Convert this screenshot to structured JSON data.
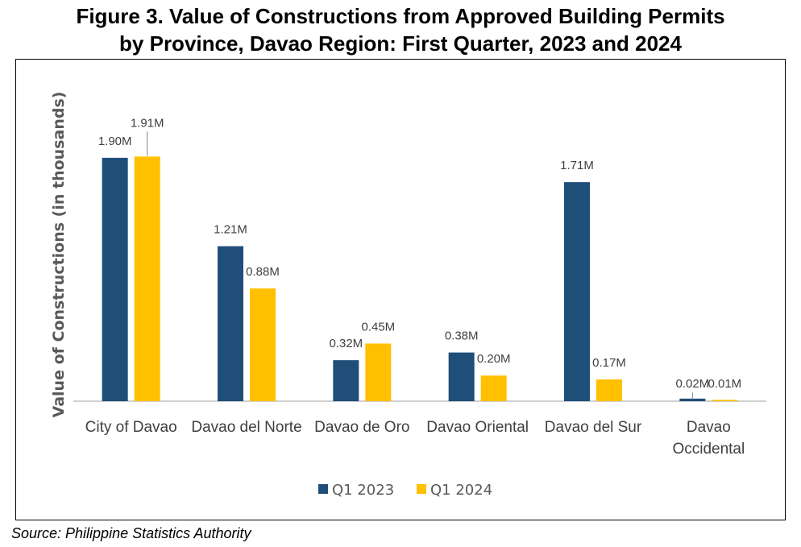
{
  "title_line1": "Figure 3. Value of Constructions from Approved Building Permits",
  "title_line2": "by Province, Davao Region: First Quarter, 2023 and 2024",
  "source": "Source: Philippine Statistics Authority",
  "colors": {
    "q1_2023": "#1F4E79",
    "q1_2024": "#FFC000",
    "axis": "#BFBFBF",
    "text": "#404040"
  },
  "chart_data": {
    "type": "bar",
    "title": "Figure 3. Value of Constructions from Approved Building Permits by Province, Davao Region: First Quarter, 2023 and 2024",
    "xlabel": "",
    "ylabel": "Value of Constructions (in thousands)",
    "ylim": [
      0,
      2.2
    ],
    "legend": "bottom",
    "grid": false,
    "categories": [
      [
        "City of Davao"
      ],
      [
        "Davao del Norte"
      ],
      [
        "Davao de Oro"
      ],
      [
        "Davao Oriental"
      ],
      [
        "Davao del Sur"
      ],
      [
        "Davao",
        "Occidental"
      ]
    ],
    "series": [
      {
        "name": "Q1 2023",
        "values": [
          1.9,
          1.21,
          0.32,
          0.38,
          1.71,
          0.02
        ],
        "labels": [
          "1.90M",
          "1.21M",
          "0.32M",
          "0.38M",
          "1.71M",
          "0.02M"
        ]
      },
      {
        "name": "Q1 2024",
        "values": [
          1.91,
          0.88,
          0.45,
          0.2,
          0.17,
          0.01
        ],
        "labels": [
          "1.91M",
          "0.88M",
          "0.45M",
          "0.20M",
          "0.17M",
          "0.01M"
        ]
      }
    ]
  }
}
